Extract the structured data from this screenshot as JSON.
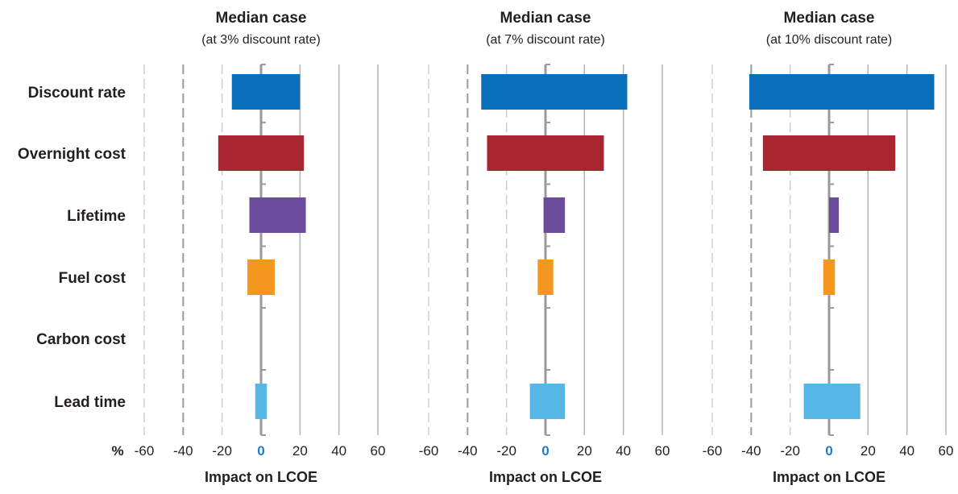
{
  "chart_data": {
    "type": "bar",
    "orientation": "horizontal",
    "categories": [
      "Discount rate",
      "Overnight cost",
      "Lifetime",
      "Fuel cost",
      "Carbon cost",
      "Lead time"
    ],
    "xlabel": "Impact on LCOE",
    "unit": "%",
    "xlim": [
      -60,
      60
    ],
    "xticks": [
      "-60",
      "-40",
      "-20",
      "0",
      "20",
      "40",
      "60"
    ],
    "colors": {
      "Discount rate": "#0a6fbb",
      "Overnight cost": "#a8262f",
      "Lifetime": "#6b4c9a",
      "Fuel cost": "#f5961f",
      "Carbon cost": "#56b7e6",
      "Lead time": "#56b7e6",
      "zero_label": "#1a7fcc",
      "grid": "#bdbdbd"
    },
    "panels": [
      {
        "title": "Median case",
        "subtitle": "(at 3% discount rate)",
        "bars": [
          {
            "category": "Discount rate",
            "low": -15,
            "high": 20
          },
          {
            "category": "Overnight cost",
            "low": -22,
            "high": 22
          },
          {
            "category": "Lifetime",
            "low": -6,
            "high": 23
          },
          {
            "category": "Fuel cost",
            "low": -7,
            "high": 7
          },
          {
            "category": "Carbon cost",
            "low": 0,
            "high": 0
          },
          {
            "category": "Lead time",
            "low": -3,
            "high": 3
          }
        ]
      },
      {
        "title": "Median case",
        "subtitle": "(at 7% discount rate)",
        "bars": [
          {
            "category": "Discount rate",
            "low": -33,
            "high": 42
          },
          {
            "category": "Overnight cost",
            "low": -30,
            "high": 30
          },
          {
            "category": "Lifetime",
            "low": -1,
            "high": 10
          },
          {
            "category": "Fuel cost",
            "low": -4,
            "high": 4
          },
          {
            "category": "Carbon cost",
            "low": 0,
            "high": 0
          },
          {
            "category": "Lead time",
            "low": -8,
            "high": 10
          }
        ]
      },
      {
        "title": "Median case",
        "subtitle": "(at 10% discount rate)",
        "bars": [
          {
            "category": "Discount rate",
            "low": -41,
            "high": 54
          },
          {
            "category": "Overnight cost",
            "low": -34,
            "high": 34
          },
          {
            "category": "Lifetime",
            "low": 0,
            "high": 5
          },
          {
            "category": "Fuel cost",
            "low": -3,
            "high": 3
          },
          {
            "category": "Carbon cost",
            "low": 0,
            "high": 0
          },
          {
            "category": "Lead time",
            "low": -13,
            "high": 16
          }
        ]
      }
    ]
  }
}
